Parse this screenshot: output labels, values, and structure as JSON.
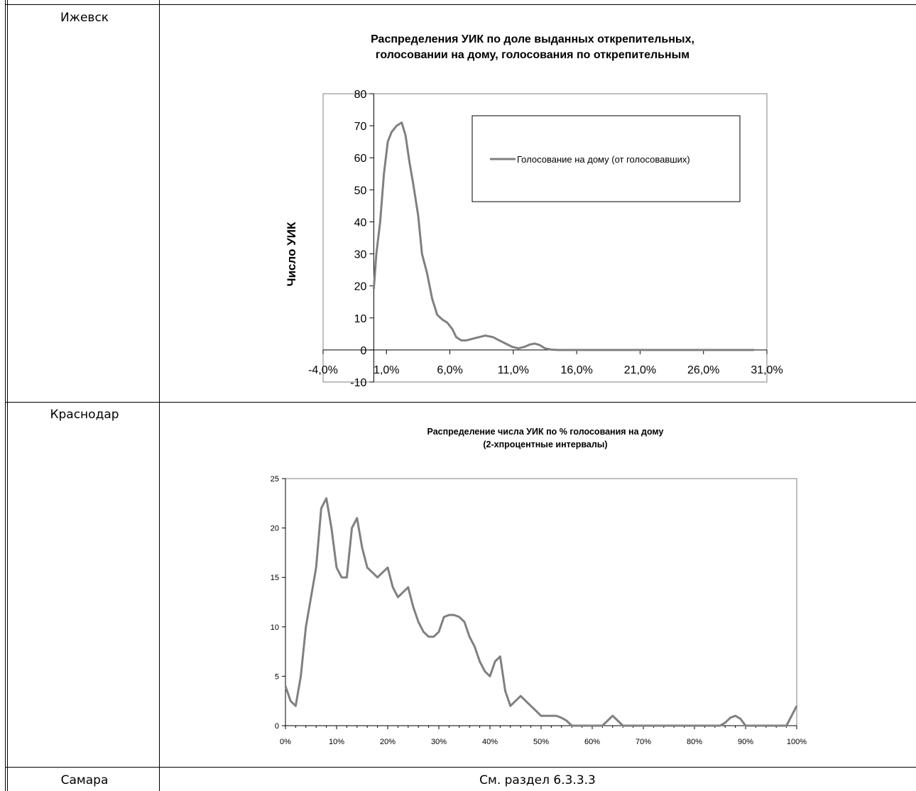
{
  "rows": [
    {
      "city": "Ижевск"
    },
    {
      "city": "Краснодар"
    },
    {
      "city": "Самара",
      "note": "См. раздел 6.3.3.3"
    }
  ],
  "chart_data": [
    {
      "type": "line",
      "title_line1": "Распределения УИК по доле выданных открепительных,",
      "title_line2": "голосовании на дому, голосования по открепительным",
      "xlabel": "",
      "ylabel": "Число УИК",
      "xlim": [
        -4.0,
        31.0
      ],
      "ylim": [
        -10,
        80
      ],
      "x_tick_values": [
        -4,
        1,
        6,
        11,
        16,
        21,
        26,
        31
      ],
      "x_tick_labels": [
        "-4,0%",
        "1,0%",
        "6,0%",
        "11,0%",
        "16,0%",
        "21,0%",
        "26,0%",
        "31,0%"
      ],
      "y_tick_values": [
        -10,
        0,
        10,
        20,
        30,
        40,
        50,
        60,
        70,
        80
      ],
      "y_tick_labels": [
        "-10",
        "0",
        "10",
        "20",
        "30",
        "40",
        "50",
        "60",
        "70",
        "80"
      ],
      "legend_position": "top-right",
      "grid": false,
      "line_color": "#808080",
      "series": [
        {
          "name": "Голосование на дому (от голосовавших)",
          "x": [
            0.0,
            0.2,
            0.5,
            0.8,
            1.1,
            1.4,
            1.8,
            2.2,
            2.5,
            2.8,
            3.1,
            3.5,
            3.8,
            4.2,
            4.6,
            5.0,
            5.4,
            5.8,
            6.2,
            6.5,
            6.9,
            7.3,
            7.8,
            8.3,
            8.8,
            9.4,
            9.9,
            10.4,
            10.9,
            11.4,
            11.9,
            12.3,
            12.7,
            13.1,
            13.5,
            14.0,
            14.5,
            15.2,
            16.0,
            18.0,
            20.0,
            22.0,
            24.0,
            26.0,
            28.0,
            30.0
          ],
          "y": [
            19,
            30,
            40,
            55,
            65,
            68,
            70,
            71,
            67,
            59,
            52,
            42,
            30,
            24,
            16,
            11,
            9.5,
            8.5,
            6.5,
            4,
            3,
            3,
            3.5,
            4,
            4.5,
            4,
            3,
            2,
            1,
            0.5,
            1,
            1.7,
            2,
            1.5,
            0.5,
            0.1,
            0,
            0,
            0,
            0,
            0,
            0,
            0,
            0,
            0,
            0
          ]
        }
      ]
    },
    {
      "type": "line",
      "title_line1": "Распределение числа УИК по % голосования на дому",
      "title_line2": "(2-хпроцентные интервалы)",
      "xlabel": "",
      "ylabel": "",
      "xlim": [
        0,
        100
      ],
      "ylim": [
        0,
        25
      ],
      "x_tick_values": [
        0,
        10,
        20,
        30,
        40,
        50,
        60,
        70,
        80,
        90,
        100
      ],
      "x_tick_labels": [
        "0%",
        "10%",
        "20%",
        "30%",
        "40%",
        "50%",
        "60%",
        "70%",
        "80%",
        "90%",
        "100%"
      ],
      "y_tick_values": [
        0,
        5,
        10,
        15,
        20,
        25
      ],
      "y_tick_labels": [
        "0",
        "5",
        "10",
        "15",
        "20",
        "25"
      ],
      "grid": false,
      "line_color": "#808080",
      "series": [
        {
          "x": [
            0,
            1,
            2,
            3,
            4,
            5,
            6,
            7,
            8,
            9,
            10,
            11,
            12,
            13,
            14,
            15,
            16,
            17,
            18,
            19,
            20,
            21,
            22,
            23,
            24,
            25,
            26,
            27,
            28,
            29,
            30,
            31,
            32,
            33,
            34,
            35,
            36,
            37,
            38,
            39,
            40,
            41,
            42,
            43,
            44,
            45,
            46,
            47,
            48,
            49,
            50,
            51,
            52,
            53,
            54,
            55,
            56,
            58,
            60,
            62,
            63,
            64,
            65,
            66,
            68,
            70,
            75,
            80,
            85,
            86,
            87,
            88,
            89,
            90,
            92,
            95,
            98,
            99,
            100
          ],
          "y": [
            4,
            2.5,
            2,
            5,
            10,
            13,
            16,
            22,
            23,
            20,
            16,
            15,
            15,
            20,
            21,
            18,
            16,
            15.5,
            15,
            15.5,
            16,
            14,
            13,
            13.5,
            14,
            12,
            10.5,
            9.5,
            9,
            9,
            9.5,
            11,
            11.2,
            11.2,
            11,
            10.5,
            9,
            8,
            6.5,
            5.5,
            5,
            6.5,
            7,
            3.5,
            2,
            2.5,
            3,
            2.5,
            2,
            1.5,
            1,
            1,
            1,
            1,
            0.8,
            0.5,
            0,
            0,
            0,
            0,
            0.5,
            1,
            0.5,
            0,
            0,
            0,
            0,
            0,
            0,
            0.3,
            0.8,
            1,
            0.7,
            0,
            0,
            0,
            0,
            1,
            2
          ]
        }
      ]
    }
  ]
}
